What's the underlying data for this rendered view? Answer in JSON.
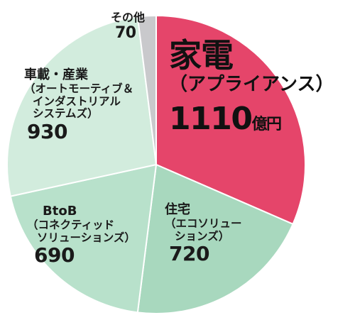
{
  "chart_data": {
    "type": "pie",
    "title": "",
    "unit": "億円",
    "slices": [
      {
        "id": "kaden",
        "name": "家電",
        "sub": [
          "（アプライアンス）"
        ],
        "value": 1110,
        "value_label": "1110",
        "unit_label": "億円",
        "color": "#e5456a"
      },
      {
        "id": "jutaku",
        "name": "住宅",
        "sub": [
          "（エコソリュー",
          "ションズ）"
        ],
        "value": 720,
        "value_label": "720",
        "unit_label": "",
        "color": "#a8d8be"
      },
      {
        "id": "btob",
        "name": "BtoB",
        "sub": [
          "（コネクティッド",
          "ソリューションズ）"
        ],
        "value": 690,
        "value_label": "690",
        "unit_label": "",
        "color": "#b8e1cb"
      },
      {
        "id": "sharyo",
        "name": "車載・産業",
        "sub": [
          "（オートモーティブ＆",
          "インダストリアル",
          "システムズ）"
        ],
        "value": 930,
        "value_label": "930",
        "unit_label": "",
        "color": "#d2ecdd"
      },
      {
        "id": "other",
        "name": "その他",
        "sub": [],
        "value": 70,
        "value_label": "70",
        "unit_label": "",
        "color": "#c9c9cc"
      }
    ]
  }
}
